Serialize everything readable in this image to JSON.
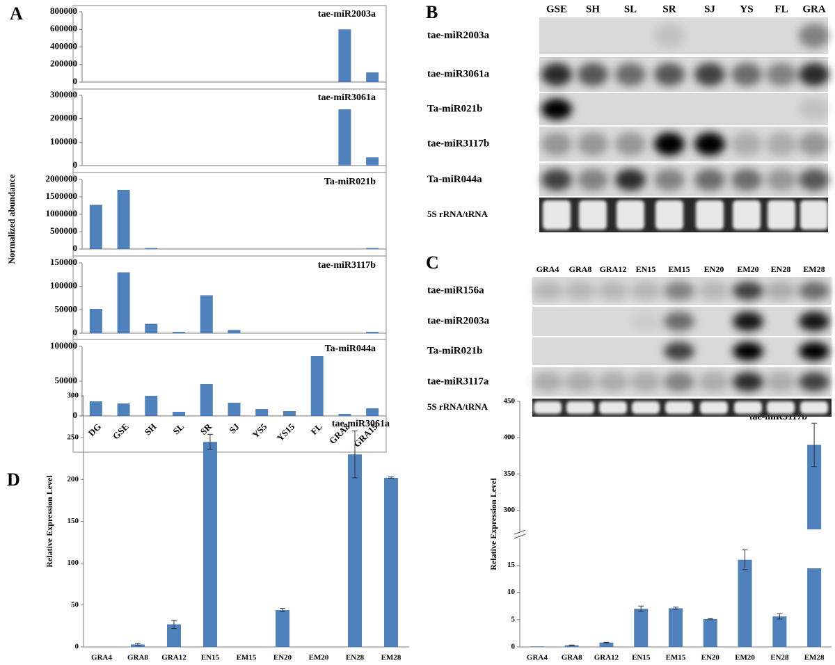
{
  "panel_labels": [
    "A",
    "B",
    "C",
    "D"
  ],
  "panel_a_ylabel": "Normalized abundance",
  "chart_data": [
    {
      "type": "bar",
      "title": "tae-miR2003a",
      "color": "#4f81bd",
      "values": [
        0,
        0,
        0,
        0,
        0,
        0,
        0,
        0,
        0,
        600000,
        110000
      ],
      "ylim": [
        0,
        800000
      ],
      "yticks": [
        0,
        200000,
        400000,
        600000,
        800000
      ]
    },
    {
      "type": "bar",
      "title": "tae-miR3061a",
      "color": "#4f81bd",
      "values": [
        0,
        0,
        0,
        0,
        0,
        0,
        0,
        0,
        0,
        240000,
        35000
      ],
      "ylim": [
        0,
        300000
      ],
      "yticks": [
        0,
        100000,
        200000,
        300000
      ]
    },
    {
      "type": "bar",
      "title": "Ta-miR021b",
      "color": "#4f81bd",
      "values": [
        1270000,
        1700000,
        30000,
        0,
        0,
        0,
        0,
        0,
        0,
        0,
        30000
      ],
      "ylim": [
        0,
        2000000
      ],
      "yticks": [
        0,
        500000,
        1000000,
        1500000,
        2000000
      ]
    },
    {
      "type": "bar",
      "title": "tae-miR3117b",
      "color": "#4f81bd",
      "values": [
        52000,
        130000,
        20000,
        3000,
        81000,
        7000,
        0,
        0,
        0,
        0,
        3000
      ],
      "ylim": [
        0,
        150000
      ],
      "yticks": [
        0,
        50000,
        100000,
        150000
      ]
    },
    {
      "type": "bar",
      "title": "Ta-miR044a",
      "color": "#4f81bd",
      "categories": [
        "DG",
        "GSE",
        "SH",
        "SL",
        "SR",
        "SJ",
        "YS5",
        "YS15",
        "FL",
        "GRA8",
        "GRA15"
      ],
      "values": [
        21000,
        18000,
        29000,
        6000,
        46000,
        19000,
        10000,
        7000,
        86000,
        3000,
        11000
      ],
      "ylim": [
        0,
        100000
      ],
      "yticks": [
        0,
        50000,
        100000
      ]
    },
    {
      "type": "bar",
      "title": "tae-miR3061a",
      "ylabel": "Relative Expression Level",
      "color": "#4f81bd",
      "categories": [
        "GRA4",
        "GRA8",
        "GRA12",
        "EN15",
        "EM15",
        "EN20",
        "EM20",
        "EN28",
        "EM28"
      ],
      "values": [
        0,
        3,
        27,
        245,
        0,
        44,
        0,
        230,
        202
      ],
      "errors": [
        0,
        1,
        5,
        9,
        0,
        2,
        0,
        28,
        1
      ],
      "ylim": [
        0,
        300
      ],
      "yticks": [
        0,
        50,
        100,
        150,
        200,
        250,
        300
      ]
    },
    {
      "type": "bar",
      "title": "tae-miR3117b",
      "ylabel": "Relative Expression Level",
      "color": "#4f81bd",
      "categories": [
        "GRA4",
        "GRA8",
        "GRA12",
        "EN15",
        "EM15",
        "EN20",
        "EM20",
        "EN28",
        "EM28"
      ],
      "values": [
        0.1,
        0.3,
        0.8,
        7,
        7.1,
        5.1,
        16,
        5.6,
        390
      ],
      "errors": [
        0,
        0.05,
        0.05,
        0.5,
        0.2,
        0.1,
        1.8,
        0.5,
        30
      ],
      "ylim": [
        0,
        450
      ],
      "ybreak": [
        18,
        285
      ],
      "yticks": [
        0,
        5,
        10,
        15,
        300,
        350,
        400,
        450
      ]
    }
  ],
  "blots": [
    {
      "lanes": [
        "GSE",
        "SH",
        "SL",
        "SR",
        "SJ",
        "YS",
        "FL",
        "GRA"
      ],
      "rows": [
        "tae-miR2003a",
        "tae-miR3061a",
        "Ta-miR021b",
        "tae-miR3117b",
        "Ta-miR044a",
        "5S rRNA/tRNA"
      ]
    },
    {
      "lanes": [
        "GRA4",
        "GRA8",
        "GRA12",
        "EN15",
        "EM15",
        "EN20",
        "EM20",
        "EN28",
        "EM28"
      ],
      "rows": [
        "tae-miR156a",
        "tae-miR2003a",
        "Ta-miR021b",
        "tae-miR3117a",
        "5S rRNA/tRNA"
      ]
    }
  ]
}
